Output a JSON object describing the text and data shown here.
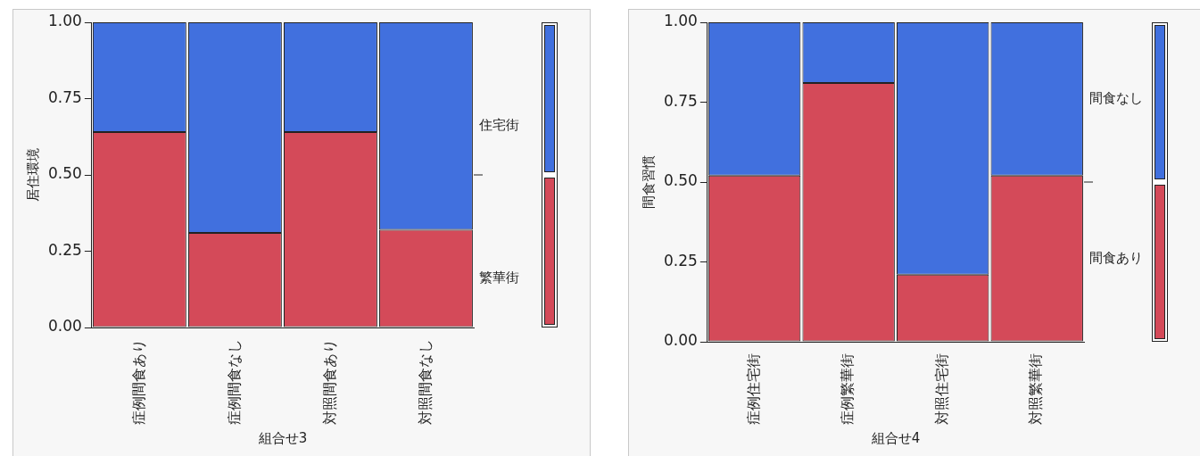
{
  "chart_data": [
    {
      "type": "bar",
      "stacked": true,
      "xlabel": "組合せ3",
      "ylabel": "居住環境",
      "categories": [
        "症例間食あり",
        "症例間食なし",
        "対照間食あり",
        "対照間食なし"
      ],
      "series": [
        {
          "name": "繁華街",
          "color": "#d44a59",
          "values": [
            0.64,
            0.31,
            0.64,
            0.32
          ]
        },
        {
          "name": "住宅街",
          "color": "#4170de",
          "values": [
            0.36,
            0.69,
            0.36,
            0.68
          ]
        }
      ],
      "ylim": [
        0,
        1
      ],
      "yticks": [
        {
          "value": 0,
          "label": "0.00"
        },
        {
          "value": 0.25,
          "label": "0.25"
        },
        {
          "value": 0.5,
          "label": "0.50"
        },
        {
          "value": 0.75,
          "label": "0.75"
        },
        {
          "value": 1,
          "label": "1.00"
        }
      ],
      "grid": false,
      "legend": "right"
    },
    {
      "type": "bar",
      "stacked": true,
      "xlabel": "組合せ4",
      "ylabel": "間食習慣",
      "categories": [
        "症例住宅街",
        "症例繁華街",
        "対照住宅街",
        "対照繁華街"
      ],
      "series": [
        {
          "name": "間食あり",
          "color": "#d44a59",
          "values": [
            0.52,
            0.81,
            0.21,
            0.52
          ]
        },
        {
          "name": "間食なし",
          "color": "#4170de",
          "values": [
            0.48,
            0.19,
            0.79,
            0.48
          ]
        }
      ],
      "ylim": [
        0,
        1
      ],
      "yticks": [
        {
          "value": 0,
          "label": "0.00"
        },
        {
          "value": 0.25,
          "label": "0.25"
        },
        {
          "value": 0.5,
          "label": "0.50"
        },
        {
          "value": 0.75,
          "label": "0.75"
        },
        {
          "value": 1,
          "label": "1.00"
        }
      ],
      "grid": false,
      "legend": "right"
    }
  ]
}
